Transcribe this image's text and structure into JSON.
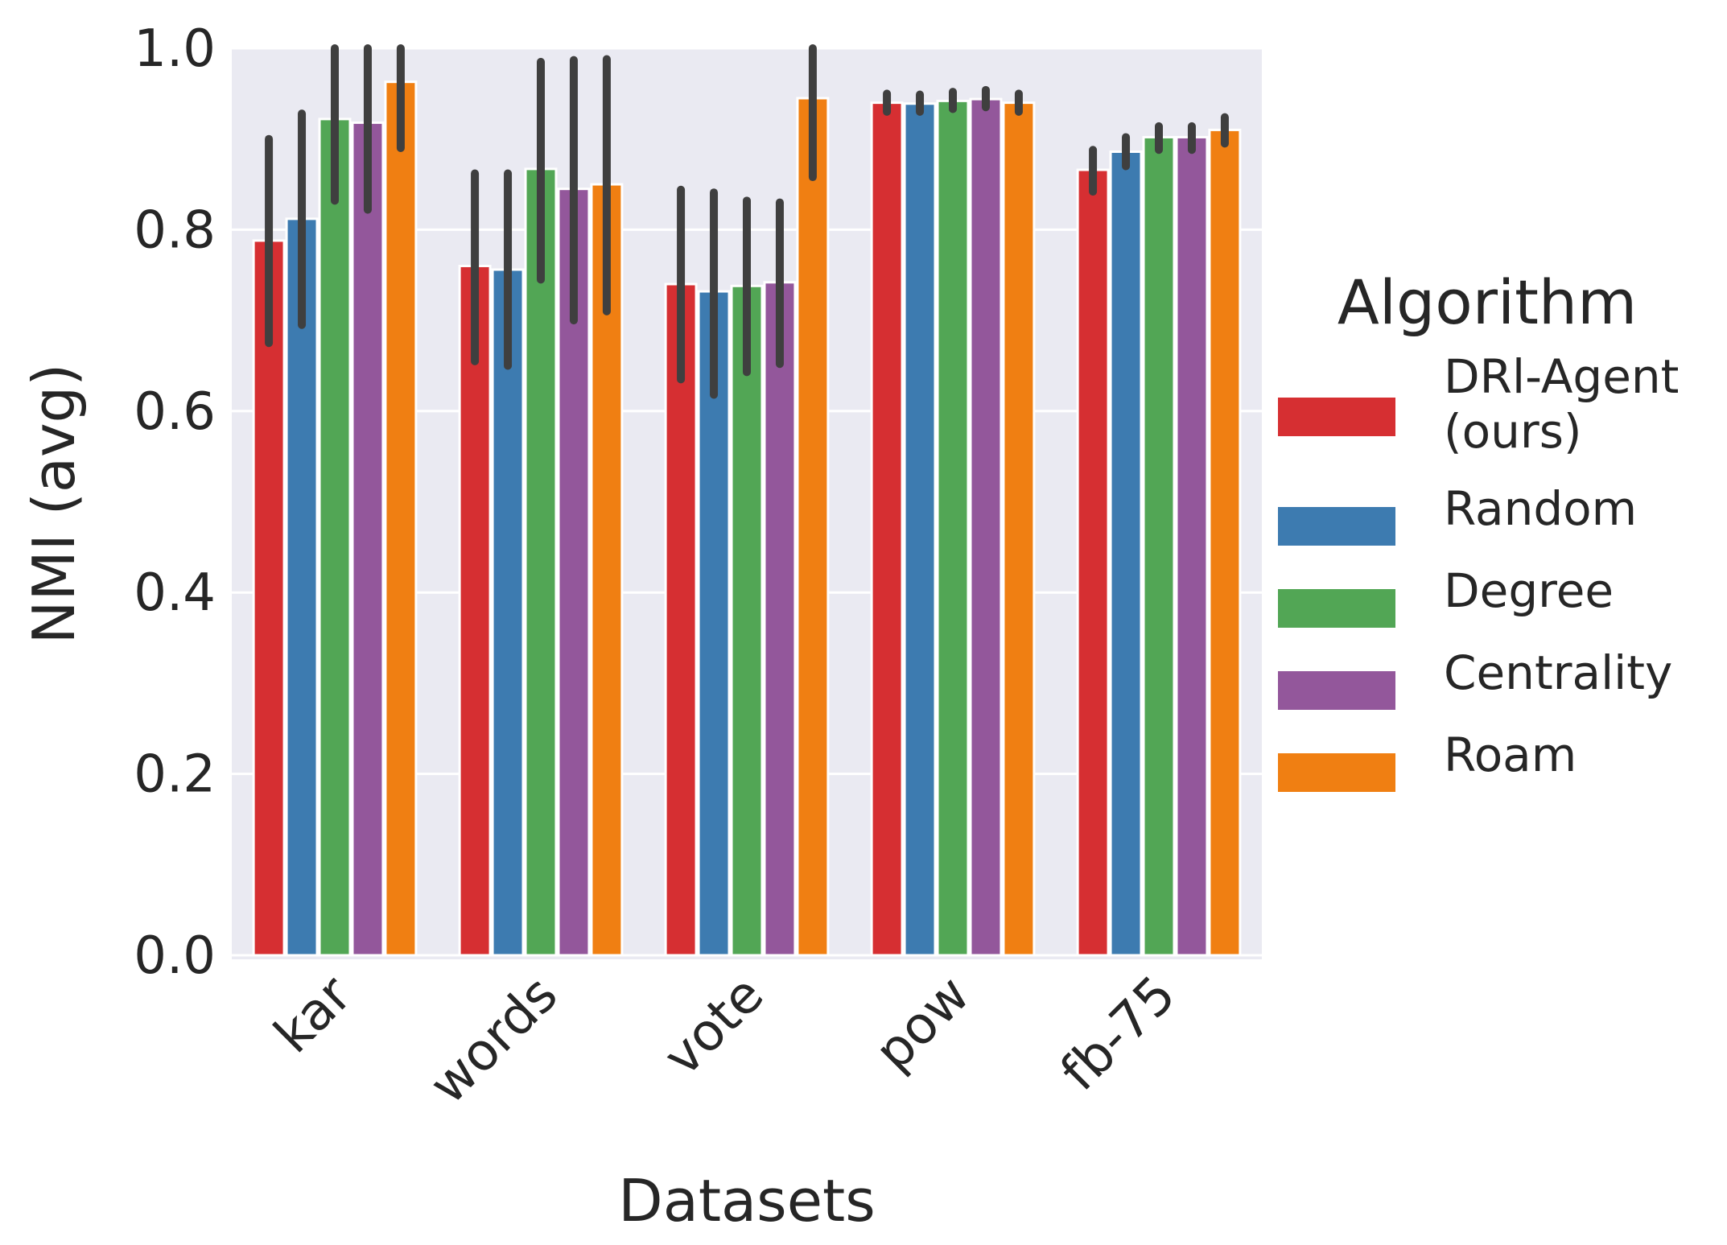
{
  "chart_data": {
    "type": "bar",
    "title": "",
    "xlabel": "Datasets",
    "ylabel": "NMI (avg)",
    "ylim": [
      0,
      1.0
    ],
    "yticks": [
      "0.0",
      "0.2",
      "0.4",
      "0.6",
      "0.8",
      "1.0"
    ],
    "categories": [
      "kar",
      "words",
      "vote",
      "pow",
      "fb-75"
    ],
    "grid": true,
    "legend": {
      "title": "Algorithm",
      "placement": "right"
    },
    "series": [
      {
        "name": "DRl-Agent (ours)",
        "name_lines": [
          "DRl-Agent",
          "(ours)"
        ],
        "color": "#d62f32",
        "values": [
          0.788,
          0.76,
          0.74,
          0.94,
          0.866
        ],
        "err_low": [
          0.675,
          0.655,
          0.635,
          0.93,
          0.842
        ],
        "err_high": [
          0.9,
          0.862,
          0.844,
          0.95,
          0.888
        ]
      },
      {
        "name": "Random",
        "name_lines": [
          "Random"
        ],
        "color": "#3d7bb0",
        "values": [
          0.812,
          0.756,
          0.732,
          0.939,
          0.886
        ],
        "err_low": [
          0.695,
          0.65,
          0.618,
          0.93,
          0.87
        ],
        "err_high": [
          0.928,
          0.862,
          0.841,
          0.949,
          0.902
        ]
      },
      {
        "name": "Degree",
        "name_lines": [
          "Degree"
        ],
        "color": "#52a655",
        "values": [
          0.922,
          0.867,
          0.738,
          0.942,
          0.902
        ],
        "err_low": [
          0.832,
          0.745,
          0.643,
          0.933,
          0.888
        ],
        "err_high": [
          1.0,
          0.985,
          0.832,
          0.952,
          0.914
        ]
      },
      {
        "name": "Centrality",
        "name_lines": [
          "Centrality"
        ],
        "color": "#93579b",
        "values": [
          0.918,
          0.845,
          0.742,
          0.944,
          0.902
        ],
        "err_low": [
          0.822,
          0.7,
          0.652,
          0.935,
          0.888
        ],
        "err_high": [
          1.0,
          0.987,
          0.83,
          0.954,
          0.914
        ]
      },
      {
        "name": "Roam",
        "name_lines": [
          "Roam"
        ],
        "color": "#f07f12",
        "values": [
          0.963,
          0.85,
          0.945,
          0.94,
          0.91
        ],
        "err_low": [
          0.89,
          0.71,
          0.858,
          0.93,
          0.895
        ],
        "err_high": [
          1.0,
          0.988,
          1.0,
          0.95,
          0.924
        ]
      }
    ]
  },
  "colors": {
    "plot_background": "#eaeaf2",
    "grid": "#ffffff",
    "error_bar": "#3f3f3f",
    "text": "#262626"
  }
}
